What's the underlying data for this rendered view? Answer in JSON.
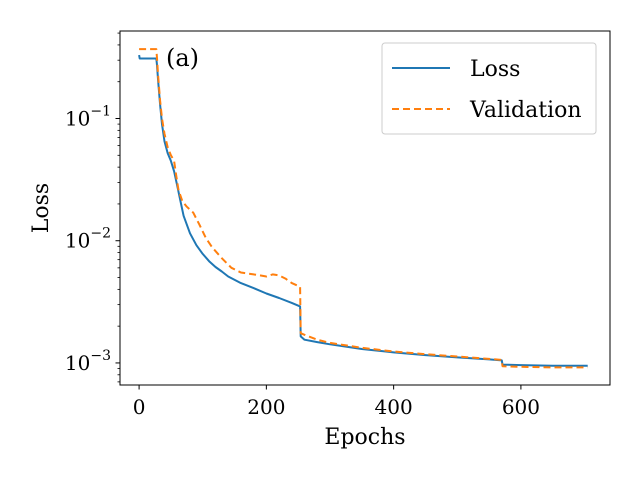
{
  "chart_data": {
    "type": "line",
    "yscale": "log",
    "xlabel": "Epochs",
    "ylabel": "Loss",
    "annotation": "(a)",
    "xlim": [
      -30,
      740
    ],
    "ylim": [
      0.00066,
      0.52
    ],
    "x_ticks": [
      {
        "value": 0,
        "label": "0"
      },
      {
        "value": 200,
        "label": "200"
      },
      {
        "value": 400,
        "label": "400"
      },
      {
        "value": 600,
        "label": "600"
      }
    ],
    "y_ticks": [
      {
        "value": 0.001,
        "base": "10",
        "exp": "−3"
      },
      {
        "value": 0.01,
        "base": "10",
        "exp": "−2"
      },
      {
        "value": 0.1,
        "base": "10",
        "exp": "−1"
      }
    ],
    "legend_position": "top-right",
    "series": [
      {
        "name": "Loss",
        "color": "#1f77b4",
        "dash": "",
        "x": [
          0,
          1,
          27,
          28,
          30,
          33,
          36,
          40,
          45,
          50,
          55,
          60,
          65,
          70,
          80,
          90,
          100,
          110,
          120,
          130,
          140,
          160,
          180,
          200,
          220,
          240,
          253,
          254,
          260,
          280,
          300,
          350,
          400,
          450,
          500,
          550,
          570,
          571,
          600,
          650,
          700,
          705
        ],
        "y": [
          0.33,
          0.31,
          0.31,
          0.28,
          0.2,
          0.13,
          0.09,
          0.065,
          0.052,
          0.045,
          0.037,
          0.028,
          0.021,
          0.016,
          0.0115,
          0.0092,
          0.0078,
          0.0068,
          0.0061,
          0.0056,
          0.0051,
          0.0045,
          0.0041,
          0.0037,
          0.0034,
          0.0031,
          0.0029,
          0.00165,
          0.00155,
          0.00148,
          0.00142,
          0.0013,
          0.00122,
          0.00116,
          0.00111,
          0.00107,
          0.00105,
          0.00097,
          0.00096,
          0.00095,
          0.00095,
          0.00095
        ]
      },
      {
        "name": "Validation",
        "color": "#ff7f0e",
        "dash": "7,4",
        "x": [
          0,
          1,
          27,
          28,
          30,
          33,
          36,
          40,
          45,
          50,
          55,
          58,
          62,
          68,
          75,
          85,
          95,
          105,
          115,
          130,
          145,
          160,
          180,
          190,
          200,
          210,
          220,
          230,
          240,
          253,
          254,
          260,
          280,
          300,
          350,
          400,
          450,
          500,
          550,
          570,
          571,
          600,
          650,
          700,
          705
        ],
        "y": [
          0.37,
          0.37,
          0.37,
          0.32,
          0.22,
          0.14,
          0.1,
          0.075,
          0.058,
          0.05,
          0.045,
          0.035,
          0.026,
          0.021,
          0.019,
          0.017,
          0.0135,
          0.0105,
          0.0088,
          0.0072,
          0.006,
          0.0055,
          0.0053,
          0.0052,
          0.0051,
          0.0053,
          0.0052,
          0.0049,
          0.0045,
          0.0042,
          0.00175,
          0.0017,
          0.00155,
          0.00146,
          0.00133,
          0.00124,
          0.00118,
          0.00113,
          0.00108,
          0.00106,
          0.00094,
          0.00093,
          0.00092,
          0.00092,
          0.00092
        ]
      }
    ]
  }
}
